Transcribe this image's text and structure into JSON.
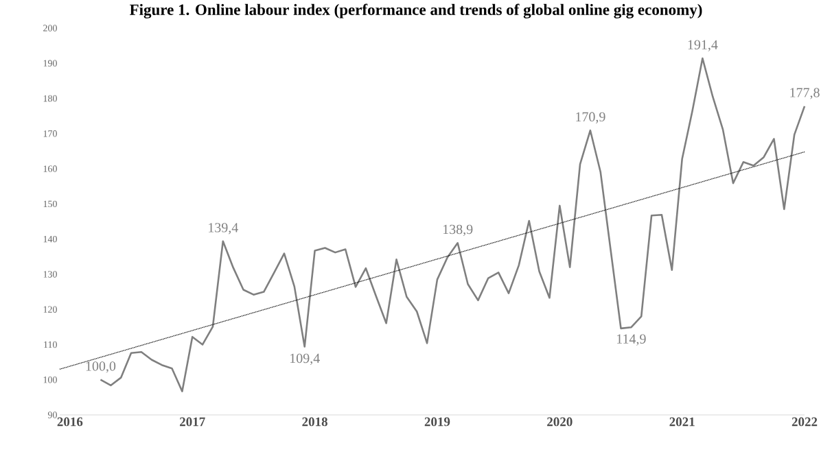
{
  "chart_data": {
    "type": "line",
    "title": "Figure 1. Online labour index (performance and trends of global online gig economy)",
    "x": [
      "2016-04",
      "2016-05",
      "2016-06",
      "2016-07",
      "2016-08",
      "2016-09",
      "2016-10",
      "2016-11",
      "2016-12",
      "2017-01",
      "2017-02",
      "2017-03",
      "2017-04",
      "2017-05",
      "2017-06",
      "2017-07",
      "2017-08",
      "2017-09",
      "2017-10",
      "2017-11",
      "2017-12",
      "2018-01",
      "2018-02",
      "2018-03",
      "2018-04",
      "2018-05",
      "2018-06",
      "2018-07",
      "2018-08",
      "2018-09",
      "2018-10",
      "2018-11",
      "2018-12",
      "2019-01",
      "2019-02",
      "2019-03",
      "2019-04",
      "2019-05",
      "2019-06",
      "2019-07",
      "2019-08",
      "2019-09",
      "2019-10",
      "2019-11",
      "2019-12",
      "2020-01",
      "2020-02",
      "2020-03",
      "2020-04",
      "2020-05",
      "2020-06",
      "2020-07",
      "2020-08",
      "2020-09",
      "2020-10",
      "2020-11",
      "2020-12",
      "2021-01",
      "2021-02",
      "2021-03",
      "2021-04",
      "2021-05",
      "2021-06",
      "2021-07",
      "2021-08",
      "2021-09",
      "2021-10",
      "2021-11",
      "2021-12",
      "2022-01"
    ],
    "series": [
      {
        "color": "#7f7f7f",
        "line_style": "solid",
        "values": [
          100.0,
          98.4,
          100.6,
          107.6,
          107.9,
          105.7,
          104.2,
          103.2,
          96.7,
          112.2,
          110.0,
          115.1,
          139.4,
          131.9,
          125.6,
          124.2,
          125.0,
          130.4,
          135.9,
          126.5,
          109.4,
          136.7,
          137.5,
          136.2,
          137.1,
          126.4,
          131.7,
          123.8,
          116.1,
          134.2,
          123.6,
          119.4,
          110.4,
          128.5,
          134.8,
          138.9,
          127.2,
          122.6,
          128.9,
          130.5,
          124.6,
          132.6,
          145.2,
          130.8,
          123.3,
          149.5,
          132.0,
          161.3,
          170.9,
          159.1,
          136.8,
          114.6,
          114.9,
          118.0,
          146.7,
          146.9,
          131.2,
          162.8,
          176.4,
          191.4,
          180.5,
          171.1,
          155.9,
          161.9,
          160.9,
          163.3,
          168.5,
          148.5,
          169.7,
          177.8
        ],
        "value_labels": [
          "100,0",
          null,
          null,
          null,
          null,
          null,
          null,
          null,
          null,
          null,
          null,
          null,
          "139,4",
          null,
          null,
          null,
          null,
          null,
          null,
          null,
          "109,4",
          null,
          null,
          null,
          null,
          null,
          null,
          null,
          null,
          null,
          null,
          null,
          null,
          null,
          null,
          "138,9",
          null,
          null,
          null,
          null,
          null,
          null,
          null,
          null,
          null,
          null,
          null,
          null,
          "170,9",
          null,
          null,
          null,
          "114,9",
          null,
          null,
          null,
          null,
          null,
          null,
          "191,4",
          null,
          null,
          null,
          null,
          null,
          null,
          null,
          null,
          null,
          "177,8"
        ]
      },
      {
        "type": "line",
        "color": "#000000",
        "line_style": "dotted",
        "x": [
          "2015-12",
          "2022-01"
        ],
        "values": [
          103.0,
          164.8
        ]
      }
    ],
    "xlim": [
      "2015-12",
      "2022-01"
    ],
    "xticks": [
      "2016",
      "2017",
      "2018",
      "2019",
      "2020",
      "2021",
      "2022"
    ],
    "ylim": [
      90,
      200
    ],
    "yticks": [
      90,
      100,
      110,
      120,
      130,
      140,
      150,
      160,
      170,
      180,
      190,
      200
    ],
    "grid": false
  }
}
